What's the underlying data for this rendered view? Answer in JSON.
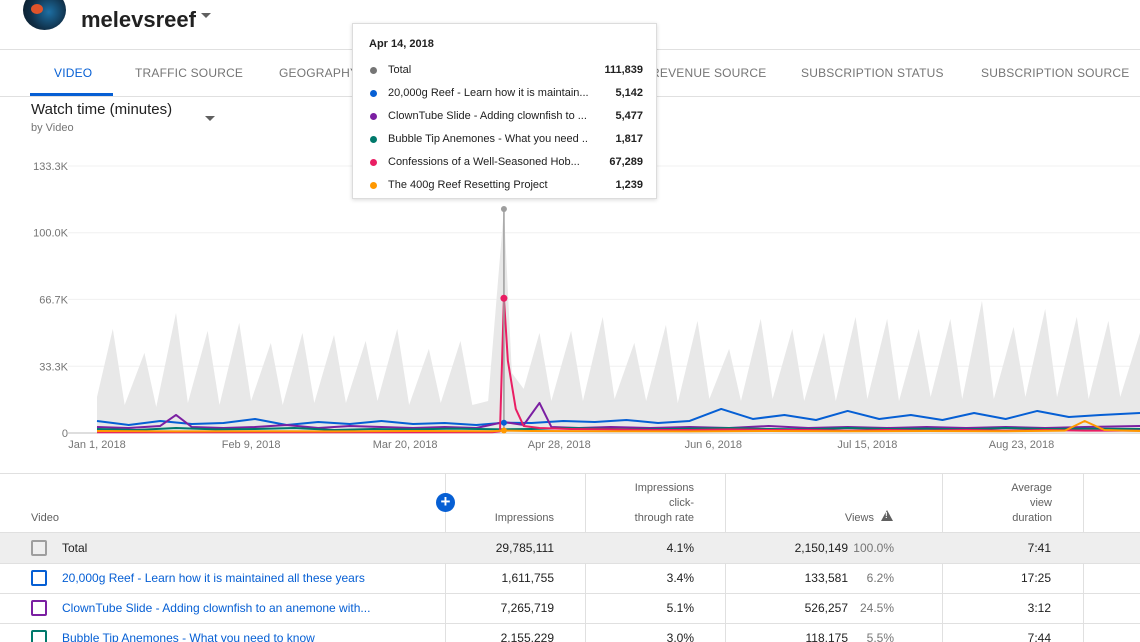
{
  "channel": {
    "name": "melevsreef",
    "avatar_text": "reef"
  },
  "tabs": [
    {
      "label": "VIDEO",
      "active": true
    },
    {
      "label": "TRAFFIC SOURCE"
    },
    {
      "label": "GEOGRAPHY"
    },
    {
      "label": "REVENUE SOURCE"
    },
    {
      "label": "SUBSCRIPTION STATUS"
    },
    {
      "label": "SUBSCRIPTION SOURCE"
    }
  ],
  "metric": {
    "title": "Watch time (minutes)",
    "subtitle": "by Video"
  },
  "tooltip": {
    "date": "Apr 14, 2018",
    "rows": [
      {
        "label": "Total",
        "value": "111,839",
        "color": "#757575"
      },
      {
        "label": "20,000g Reef - Learn how it is maintain...",
        "value": "5,142",
        "color": "#065fd4"
      },
      {
        "label": "ClownTube Slide - Adding clownfish to ...",
        "value": "5,477",
        "color": "#7b1fa2"
      },
      {
        "label": "Bubble Tip Anemones - What you need ...",
        "value": "1,817",
        "color": "#00796b"
      },
      {
        "label": "Confessions of a Well-Seasoned Hob...",
        "value": "67,289",
        "color": "#e91e63"
      },
      {
        "label": "The 400g Reef Resetting Project",
        "value": "1,239",
        "color": "#ff9800"
      }
    ]
  },
  "chart_data": {
    "type": "area",
    "ylim": [
      0,
      133300
    ],
    "y_ticks": [
      "0",
      "33.3K",
      "66.7K",
      "100.0K",
      "133.3K"
    ],
    "y_tick_values": [
      0,
      33300,
      66700,
      100000,
      133300
    ],
    "x_ticks": [
      "Jan 1, 2018",
      "Feb 9, 2018",
      "Mar 20, 2018",
      "Apr 28, 2018",
      "Jun 6, 2018",
      "Jul 15, 2018",
      "Aug 23, 2018"
    ],
    "x_tick_days": [
      0,
      39,
      78,
      117,
      156,
      195,
      234
    ],
    "x_max_days": 264,
    "highlight": {
      "date": "Apr 14, 2018",
      "day": 103,
      "total": 111839,
      "confessions": 67289
    },
    "series": [
      {
        "name": "Total",
        "color": "#e8e8e8",
        "style": "area",
        "points": [
          [
            0,
            18000
          ],
          [
            4,
            52000
          ],
          [
            7,
            14000
          ],
          [
            12,
            40000
          ],
          [
            15,
            13000
          ],
          [
            20,
            60000
          ],
          [
            23,
            15000
          ],
          [
            28,
            51000
          ],
          [
            31,
            14000
          ],
          [
            36,
            55000
          ],
          [
            39,
            16000
          ],
          [
            44,
            45000
          ],
          [
            47,
            14000
          ],
          [
            52,
            50000
          ],
          [
            55,
            15000
          ],
          [
            60,
            49000
          ],
          [
            63,
            15000
          ],
          [
            68,
            46000
          ],
          [
            71,
            16000
          ],
          [
            76,
            52000
          ],
          [
            79,
            14000
          ],
          [
            84,
            42000
          ],
          [
            87,
            15000
          ],
          [
            92,
            46000
          ],
          [
            95,
            14000
          ],
          [
            99,
            16000
          ],
          [
            103,
            111839
          ],
          [
            105,
            30000
          ],
          [
            108,
            22000
          ],
          [
            112,
            50000
          ],
          [
            115,
            16000
          ],
          [
            120,
            51000
          ],
          [
            123,
            16000
          ],
          [
            128,
            58000
          ],
          [
            131,
            17000
          ],
          [
            136,
            45000
          ],
          [
            139,
            16000
          ],
          [
            144,
            54000
          ],
          [
            147,
            15000
          ],
          [
            152,
            56000
          ],
          [
            155,
            17000
          ],
          [
            160,
            42000
          ],
          [
            163,
            16000
          ],
          [
            168,
            57000
          ],
          [
            171,
            17000
          ],
          [
            176,
            52000
          ],
          [
            179,
            16000
          ],
          [
            184,
            50000
          ],
          [
            187,
            16000
          ],
          [
            192,
            58000
          ],
          [
            195,
            17000
          ],
          [
            200,
            57000
          ],
          [
            203,
            16000
          ],
          [
            208,
            52000
          ],
          [
            211,
            18000
          ],
          [
            216,
            57000
          ],
          [
            219,
            17000
          ],
          [
            224,
            66000
          ],
          [
            227,
            17000
          ],
          [
            232,
            53000
          ],
          [
            235,
            18000
          ],
          [
            240,
            62000
          ],
          [
            243,
            18000
          ],
          [
            248,
            58000
          ],
          [
            251,
            17000
          ],
          [
            256,
            56000
          ],
          [
            259,
            18000
          ],
          [
            264,
            50000
          ]
        ]
      },
      {
        "name": "20,000g Reef - Learn how it is maintain...",
        "color": "#065fd4",
        "style": "line",
        "points": [
          [
            0,
            6000
          ],
          [
            8,
            4000
          ],
          [
            16,
            6000
          ],
          [
            24,
            4500
          ],
          [
            32,
            5000
          ],
          [
            40,
            7000
          ],
          [
            48,
            4000
          ],
          [
            56,
            5500
          ],
          [
            64,
            4500
          ],
          [
            72,
            6000
          ],
          [
            80,
            4500
          ],
          [
            88,
            5000
          ],
          [
            96,
            4000
          ],
          [
            103,
            5142
          ],
          [
            110,
            5000
          ],
          [
            118,
            6000
          ],
          [
            126,
            5500
          ],
          [
            134,
            6500
          ],
          [
            142,
            5000
          ],
          [
            150,
            6000
          ],
          [
            158,
            12000
          ],
          [
            166,
            7000
          ],
          [
            174,
            9000
          ],
          [
            182,
            6500
          ],
          [
            190,
            11000
          ],
          [
            198,
            7000
          ],
          [
            206,
            9000
          ],
          [
            214,
            6500
          ],
          [
            222,
            10000
          ],
          [
            230,
            7000
          ],
          [
            238,
            11000
          ],
          [
            246,
            8000
          ],
          [
            254,
            9000
          ],
          [
            264,
            10000
          ]
        ]
      },
      {
        "name": "ClownTube Slide - Adding clownfish to ...",
        "color": "#7b1fa2",
        "style": "line",
        "points": [
          [
            0,
            3000
          ],
          [
            8,
            2500
          ],
          [
            16,
            3500
          ],
          [
            20,
            9000
          ],
          [
            24,
            3000
          ],
          [
            32,
            2500
          ],
          [
            40,
            3000
          ],
          [
            48,
            4000
          ],
          [
            56,
            2500
          ],
          [
            64,
            3500
          ],
          [
            72,
            3000
          ],
          [
            80,
            2500
          ],
          [
            88,
            3000
          ],
          [
            96,
            2500
          ],
          [
            103,
            5477
          ],
          [
            108,
            4000
          ],
          [
            112,
            15000
          ],
          [
            115,
            3000
          ],
          [
            122,
            2500
          ],
          [
            130,
            3000
          ],
          [
            140,
            2500
          ],
          [
            150,
            3000
          ],
          [
            160,
            2500
          ],
          [
            170,
            3500
          ],
          [
            180,
            2500
          ],
          [
            190,
            3000
          ],
          [
            200,
            2500
          ],
          [
            210,
            3000
          ],
          [
            220,
            2500
          ],
          [
            230,
            3000
          ],
          [
            240,
            2500
          ],
          [
            250,
            3000
          ],
          [
            264,
            3500
          ]
        ]
      },
      {
        "name": "Bubble Tip Anemones - What you need ...",
        "color": "#00796b",
        "style": "line",
        "points": [
          [
            0,
            2000
          ],
          [
            10,
            1500
          ],
          [
            20,
            2500
          ],
          [
            30,
            1800
          ],
          [
            40,
            2000
          ],
          [
            50,
            2500
          ],
          [
            60,
            1500
          ],
          [
            70,
            2000
          ],
          [
            80,
            1800
          ],
          [
            90,
            2200
          ],
          [
            103,
            1817
          ],
          [
            110,
            2000
          ],
          [
            120,
            2500
          ],
          [
            130,
            2000
          ],
          [
            140,
            1800
          ],
          [
            150,
            2200
          ],
          [
            160,
            2500
          ],
          [
            170,
            2000
          ],
          [
            180,
            1800
          ],
          [
            190,
            2500
          ],
          [
            200,
            2000
          ],
          [
            210,
            2200
          ],
          [
            220,
            1800
          ],
          [
            230,
            2500
          ],
          [
            240,
            2000
          ],
          [
            250,
            2200
          ],
          [
            264,
            2000
          ]
        ]
      },
      {
        "name": "Confessions of a Well-Seasoned Hob...",
        "color": "#e91e63",
        "style": "line",
        "points": [
          [
            0,
            400
          ],
          [
            20,
            400
          ],
          [
            40,
            400
          ],
          [
            60,
            400
          ],
          [
            80,
            400
          ],
          [
            100,
            400
          ],
          [
            102,
            800
          ],
          [
            103,
            67289
          ],
          [
            104,
            36000
          ],
          [
            106,
            12000
          ],
          [
            108,
            3500
          ],
          [
            112,
            2500
          ],
          [
            120,
            2000
          ],
          [
            130,
            1800
          ],
          [
            140,
            1500
          ],
          [
            150,
            1500
          ],
          [
            160,
            1800
          ],
          [
            170,
            1500
          ],
          [
            180,
            1500
          ],
          [
            190,
            1200
          ],
          [
            200,
            1500
          ],
          [
            210,
            1200
          ],
          [
            220,
            1500
          ],
          [
            230,
            1200
          ],
          [
            240,
            1500
          ],
          [
            250,
            1200
          ],
          [
            264,
            1200
          ]
        ]
      },
      {
        "name": "The 400g Reef Resetting Project",
        "color": "#ff9800",
        "style": "line",
        "points": [
          [
            0,
            1000
          ],
          [
            20,
            800
          ],
          [
            40,
            900
          ],
          [
            60,
            800
          ],
          [
            80,
            1000
          ],
          [
            100,
            900
          ],
          [
            103,
            1239
          ],
          [
            110,
            1000
          ],
          [
            130,
            900
          ],
          [
            150,
            800
          ],
          [
            170,
            1000
          ],
          [
            190,
            900
          ],
          [
            210,
            1000
          ],
          [
            230,
            900
          ],
          [
            245,
            1200
          ],
          [
            250,
            6000
          ],
          [
            255,
            1500
          ],
          [
            264,
            1000
          ]
        ]
      }
    ]
  },
  "table": {
    "headers": {
      "video": "Video",
      "impressions": "Impressions",
      "ctr": [
        "Impressions",
        "click-",
        "through rate"
      ],
      "views": "Views",
      "avd": [
        "Average",
        "view",
        "duration"
      ]
    },
    "rows": [
      {
        "title": "Total",
        "impressions": "29,785,111",
        "ctr": "4.1%",
        "views": "2,150,149",
        "views_pct": "100.0%",
        "avd": "7:41",
        "is_total": true
      },
      {
        "title": "20,000g Reef - Learn how it is maintained all these years",
        "impressions": "1,611,755",
        "ctr": "3.4%",
        "views": "133,581",
        "views_pct": "6.2%",
        "avd": "17:25",
        "color": "#065fd4"
      },
      {
        "title": "ClownTube Slide - Adding clownfish to an anemone with...",
        "impressions": "7,265,719",
        "ctr": "5.1%",
        "views": "526,257",
        "views_pct": "24.5%",
        "avd": "3:12",
        "color": "#7b1fa2"
      },
      {
        "title": "Bubble Tip Anemones - What you need to know",
        "impressions": "2,155,229",
        "ctr": "3.0%",
        "views": "118,175",
        "views_pct": "5.5%",
        "avd": "7:44",
        "color": "#00796b"
      }
    ]
  }
}
